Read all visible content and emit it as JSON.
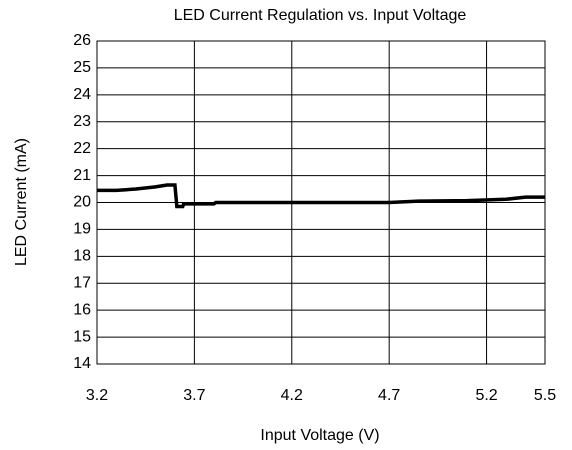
{
  "chart_data": {
    "type": "line",
    "title": "LED Current Regulation vs. Input Voltage",
    "x_label": "Input Voltage (V)",
    "y_label": "LED Current (mA)",
    "x": [
      3.2,
      3.3,
      3.4,
      3.5,
      3.56,
      3.6,
      3.61,
      3.64,
      3.645,
      3.8,
      3.81,
      4.7,
      4.85,
      5.1,
      5.3,
      5.4,
      5.5
    ],
    "series": [
      {
        "name": "LED Current",
        "color": "#000000",
        "values": [
          20.45,
          20.45,
          20.5,
          20.58,
          20.65,
          20.65,
          19.85,
          19.85,
          19.95,
          19.95,
          20.0,
          20.0,
          20.05,
          20.07,
          20.12,
          20.2,
          20.2
        ]
      }
    ],
    "xlim": [
      3.2,
      5.5
    ],
    "xticks": [
      3.2,
      3.7,
      4.2,
      4.7,
      5.2,
      5.5
    ],
    "ylim": [
      14,
      26
    ],
    "yticks": [
      14,
      15,
      16,
      17,
      18,
      19,
      20,
      21,
      22,
      23,
      24,
      25,
      26
    ],
    "grid": true
  }
}
